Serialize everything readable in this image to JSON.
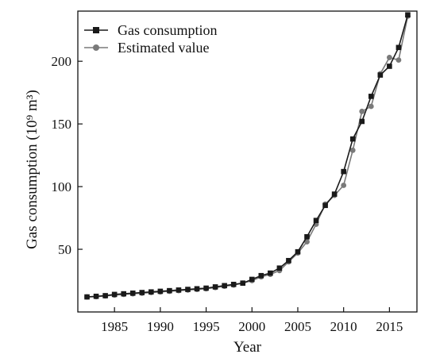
{
  "chart_data": {
    "type": "line",
    "title": "",
    "xlabel": "Year",
    "ylabel": "Gas consumption (10⁹ m³)",
    "xlim": [
      1981,
      2018
    ],
    "ylim": [
      0,
      240
    ],
    "x_ticks": [
      1985,
      1990,
      1995,
      2000,
      2005,
      2010,
      2015
    ],
    "x_tick_labels": [
      "1985",
      "1990",
      "1995",
      "2000",
      "2005",
      "2010",
      "2015"
    ],
    "y_ticks": [
      50,
      100,
      150,
      200
    ],
    "y_tick_labels": [
      "50",
      "100",
      "150",
      "200"
    ],
    "legend_position": "top-left",
    "grid": false,
    "x": [
      1982,
      1983,
      1984,
      1985,
      1986,
      1987,
      1988,
      1989,
      1990,
      1991,
      1992,
      1993,
      1994,
      1995,
      1996,
      1997,
      1998,
      1999,
      2000,
      2001,
      2002,
      2003,
      2004,
      2005,
      2006,
      2007,
      2008,
      2009,
      2010,
      2011,
      2012,
      2013,
      2014,
      2015,
      2016,
      2017
    ],
    "series": [
      {
        "name": "Gas consumption",
        "color": "#1a1a1a",
        "marker": "square",
        "values": [
          12,
          12.5,
          13,
          14,
          14.5,
          15,
          15.5,
          16,
          16.5,
          17,
          17.5,
          18,
          18.5,
          19,
          20,
          21,
          22,
          23,
          26,
          29,
          31,
          35,
          41,
          48,
          60,
          73,
          85,
          94,
          112,
          138,
          152,
          172,
          189,
          196,
          211,
          237
        ]
      },
      {
        "name": "Estimated value",
        "color": "#7a7a7a",
        "marker": "circle",
        "values": [
          12,
          12.2,
          12.8,
          13.5,
          14,
          14.5,
          15,
          15.5,
          16,
          16.5,
          17,
          17.5,
          18,
          18.5,
          19.5,
          20.5,
          21.5,
          23,
          25,
          28,
          30,
          33,
          40,
          47,
          56,
          70,
          86,
          93,
          101,
          129,
          160,
          164,
          190,
          203,
          201,
          236
        ]
      }
    ]
  }
}
